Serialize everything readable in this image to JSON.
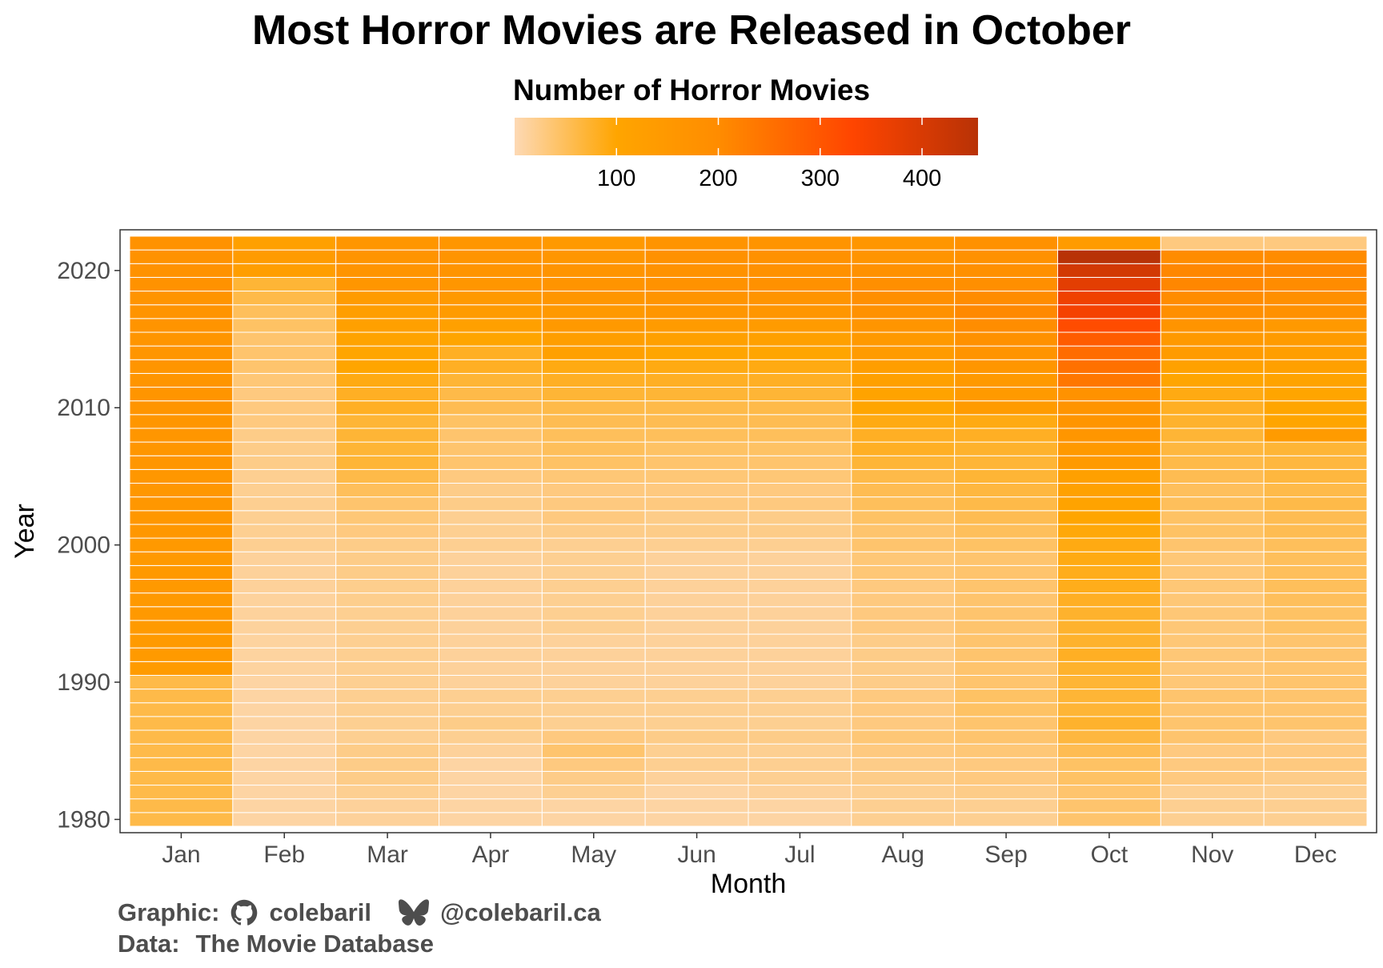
{
  "chart_data": {
    "type": "heatmap",
    "title": "Most Horror Movies are Released in October",
    "legend_title": "Number of Horror Movies",
    "legend_ticks": [
      100,
      200,
      300,
      400
    ],
    "legend_range": [
      0,
      455
    ],
    "legend_placement": "top",
    "xlabel": "Month",
    "ylabel": "Year",
    "x_categories": [
      "Jan",
      "Feb",
      "Mar",
      "Apr",
      "May",
      "Jun",
      "Jul",
      "Aug",
      "Sep",
      "Oct",
      "Nov",
      "Dec"
    ],
    "y_range": [
      1980,
      2022
    ],
    "y_ticks": [
      1980,
      1990,
      2000,
      2010,
      2020
    ],
    "grid": false,
    "colors": {
      "scale": [
        "#fdd9b5",
        "#ffa500",
        "#ff8c00",
        "#ff4500",
        "#b83206"
      ],
      "cell_border": "#ffffff",
      "panel_border": "#333333"
    },
    "series": [
      {
        "name": "Jan",
        "values": [
          60,
          60,
          60,
          60,
          60,
          60,
          60,
          60,
          60,
          60,
          60,
          140,
          145,
          145,
          145,
          148,
          150,
          150,
          150,
          150,
          150,
          155,
          155,
          155,
          155,
          155,
          160,
          160,
          160,
          160,
          165,
          165,
          165,
          165,
          165,
          165,
          170,
          170,
          170,
          175,
          175,
          175,
          175
        ]
      },
      {
        "name": "Feb",
        "values": [
          10,
          10,
          10,
          10,
          10,
          10,
          10,
          10,
          10,
          10,
          10,
          12,
          12,
          12,
          14,
          14,
          14,
          15,
          15,
          15,
          20,
          20,
          20,
          20,
          20,
          20,
          25,
          25,
          25,
          30,
          30,
          30,
          35,
          40,
          40,
          40,
          45,
          50,
          60,
          70,
          130,
          140,
          120
        ]
      },
      {
        "name": "Mar",
        "values": [
          15,
          15,
          20,
          25,
          25,
          25,
          20,
          20,
          20,
          20,
          20,
          20,
          20,
          20,
          20,
          20,
          22,
          22,
          25,
          25,
          25,
          30,
          35,
          40,
          50,
          60,
          70,
          70,
          70,
          70,
          80,
          80,
          90,
          100,
          100,
          110,
          120,
          130,
          140,
          160,
          170,
          170,
          160
        ]
      },
      {
        "name": "Apr",
        "values": [
          10,
          10,
          10,
          10,
          10,
          15,
          20,
          25,
          20,
          20,
          15,
          15,
          15,
          15,
          15,
          15,
          15,
          15,
          15,
          15,
          20,
          20,
          20,
          25,
          25,
          30,
          40,
          40,
          40,
          45,
          55,
          60,
          70,
          80,
          80,
          100,
          120,
          140,
          150,
          160,
          170,
          170,
          160
        ]
      },
      {
        "name": "May",
        "values": [
          10,
          10,
          20,
          25,
          30,
          40,
          30,
          20,
          20,
          20,
          15,
          15,
          15,
          15,
          20,
          20,
          20,
          20,
          20,
          20,
          20,
          25,
          30,
          30,
          30,
          35,
          45,
          50,
          50,
          55,
          60,
          70,
          80,
          90,
          120,
          130,
          150,
          150,
          160,
          170,
          170,
          160,
          150
        ]
      },
      {
        "name": "Jun",
        "values": [
          10,
          10,
          10,
          15,
          20,
          20,
          25,
          20,
          20,
          20,
          15,
          15,
          15,
          15,
          15,
          15,
          15,
          15,
          15,
          15,
          20,
          25,
          25,
          30,
          30,
          35,
          40,
          45,
          50,
          55,
          60,
          70,
          80,
          90,
          100,
          120,
          140,
          160,
          170,
          175,
          175,
          180,
          170
        ]
      },
      {
        "name": "Jul",
        "values": [
          10,
          10,
          15,
          20,
          20,
          20,
          25,
          20,
          20,
          20,
          15,
          15,
          15,
          15,
          15,
          15,
          15,
          15,
          15,
          15,
          20,
          25,
          25,
          30,
          30,
          35,
          40,
          45,
          50,
          55,
          60,
          70,
          80,
          90,
          100,
          120,
          140,
          160,
          170,
          180,
          180,
          180,
          170
        ]
      },
      {
        "name": "Aug",
        "values": [
          20,
          20,
          20,
          25,
          25,
          30,
          35,
          30,
          30,
          30,
          25,
          25,
          25,
          25,
          30,
          30,
          30,
          30,
          35,
          35,
          40,
          40,
          45,
          50,
          55,
          60,
          70,
          80,
          80,
          90,
          100,
          110,
          120,
          130,
          140,
          150,
          165,
          180,
          190,
          190,
          180,
          170,
          160
        ]
      },
      {
        "name": "Sep",
        "values": [
          20,
          20,
          25,
          30,
          30,
          35,
          40,
          40,
          45,
          45,
          40,
          40,
          40,
          40,
          40,
          40,
          40,
          40,
          40,
          40,
          45,
          50,
          55,
          60,
          65,
          70,
          70,
          75,
          80,
          90,
          140,
          145,
          150,
          160,
          170,
          180,
          195,
          205,
          200,
          190,
          185,
          180,
          180
        ]
      },
      {
        "name": "Oct",
        "values": [
          40,
          40,
          40,
          45,
          45,
          55,
          65,
          75,
          70,
          70,
          70,
          75,
          80,
          75,
          75,
          75,
          80,
          85,
          85,
          90,
          90,
          95,
          100,
          110,
          115,
          120,
          145,
          150,
          160,
          165,
          170,
          175,
          240,
          250,
          260,
          290,
          320,
          350,
          360,
          380,
          410,
          455,
          140
        ]
      },
      {
        "name": "Nov",
        "values": [
          20,
          20,
          20,
          30,
          30,
          30,
          40,
          40,
          40,
          40,
          35,
          35,
          35,
          35,
          35,
          35,
          35,
          35,
          35,
          35,
          40,
          45,
          45,
          50,
          50,
          55,
          60,
          65,
          70,
          75,
          80,
          90,
          100,
          115,
          140,
          150,
          170,
          190,
          200,
          210,
          210,
          200,
          30
        ]
      },
      {
        "name": "Dec",
        "values": [
          20,
          20,
          20,
          25,
          30,
          30,
          30,
          40,
          40,
          40,
          40,
          40,
          40,
          40,
          45,
          45,
          50,
          50,
          50,
          50,
          50,
          55,
          55,
          60,
          60,
          65,
          65,
          70,
          140,
          100,
          100,
          100,
          110,
          120,
          130,
          140,
          150,
          180,
          190,
          200,
          210,
          200,
          30
        ]
      }
    ]
  },
  "footer": {
    "graphic_label": "Graphic:",
    "github_icon": "github-icon",
    "github_handle": "colebaril",
    "bluesky_icon": "bluesky-butterfly-icon",
    "bluesky_handle": "@colebaril.ca",
    "data_label": "Data:",
    "data_source_1": "The",
    "data_source_2": "Movie Database"
  }
}
